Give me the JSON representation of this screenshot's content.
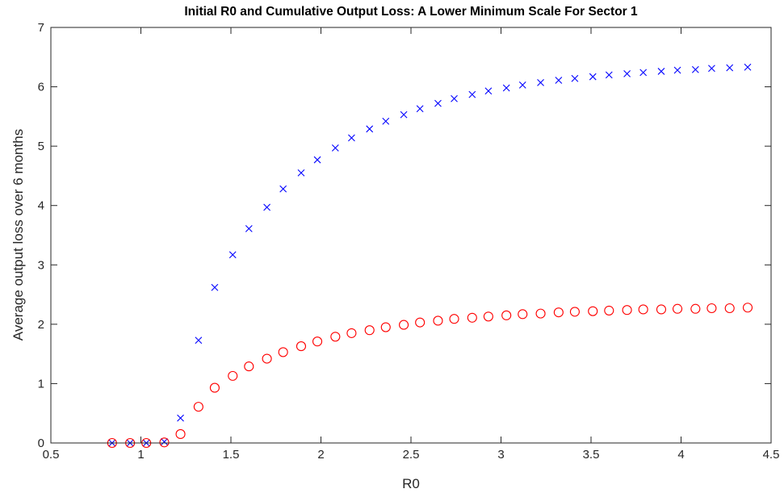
{
  "chart_data": {
    "type": "scatter",
    "title": "Initial R0 and Cumulative Output Loss: A Lower Minimum Scale For Sector 1",
    "xlabel": "R0",
    "ylabel": "Average output loss over 6 months",
    "xlim": [
      0.5,
      4.5
    ],
    "ylim": [
      0,
      7
    ],
    "xticks": [
      0.5,
      1,
      1.5,
      2,
      2.5,
      3,
      3.5,
      4,
      4.5
    ],
    "yticks": [
      0,
      1,
      2,
      3,
      4,
      5,
      6,
      7
    ],
    "grid": false,
    "legend": "none",
    "x": [
      0.84,
      0.94,
      1.03,
      1.13,
      1.22,
      1.32,
      1.41,
      1.51,
      1.6,
      1.7,
      1.79,
      1.89,
      1.98,
      2.08,
      2.17,
      2.27,
      2.36,
      2.46,
      2.55,
      2.65,
      2.74,
      2.84,
      2.93,
      3.03,
      3.12,
      3.22,
      3.32,
      3.41,
      3.51,
      3.6,
      3.7,
      3.79,
      3.89,
      3.98,
      4.08,
      4.17,
      4.27,
      4.37
    ],
    "series": [
      {
        "marker": "x",
        "color": "#0000ff",
        "values": [
          0,
          0,
          0,
          0.02,
          0.42,
          1.73,
          2.62,
          3.17,
          3.61,
          3.97,
          4.28,
          4.55,
          4.77,
          4.97,
          5.14,
          5.29,
          5.42,
          5.53,
          5.63,
          5.72,
          5.8,
          5.87,
          5.93,
          5.98,
          6.03,
          6.07,
          6.11,
          6.14,
          6.17,
          6.2,
          6.22,
          6.24,
          6.26,
          6.28,
          6.29,
          6.31,
          6.32,
          6.33
        ]
      },
      {
        "marker": "o",
        "color": "#ff0000",
        "values": [
          0,
          0,
          0,
          0.01,
          0.15,
          0.61,
          0.93,
          1.13,
          1.29,
          1.42,
          1.53,
          1.63,
          1.71,
          1.79,
          1.85,
          1.9,
          1.95,
          1.99,
          2.03,
          2.06,
          2.09,
          2.11,
          2.13,
          2.15,
          2.17,
          2.18,
          2.2,
          2.21,
          2.22,
          2.23,
          2.24,
          2.25,
          2.25,
          2.26,
          2.26,
          2.27,
          2.27,
          2.28
        ]
      }
    ]
  }
}
